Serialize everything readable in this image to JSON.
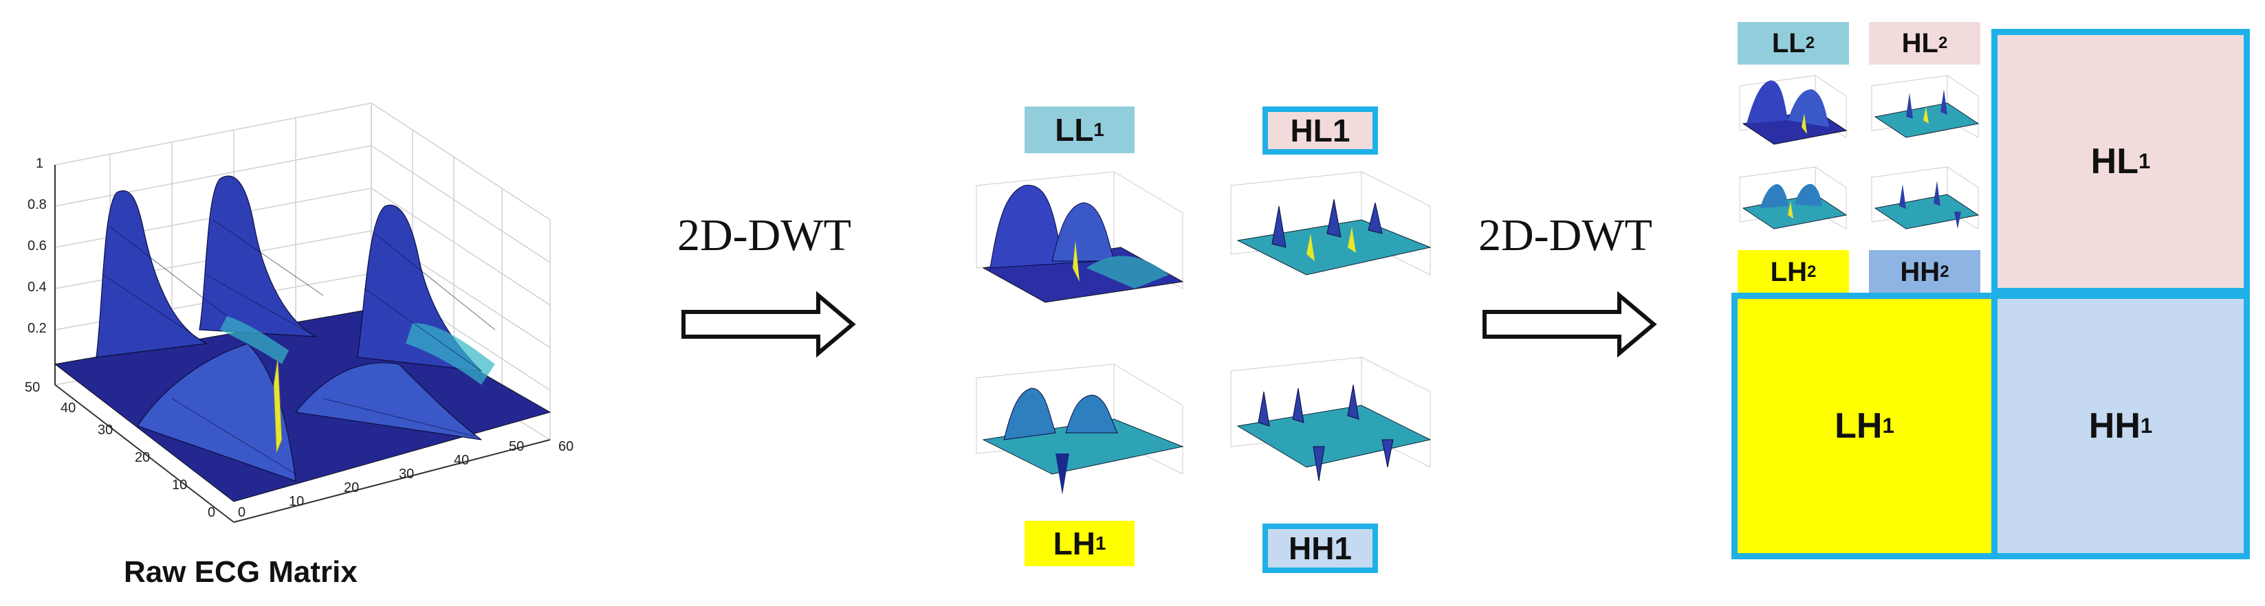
{
  "raw_plot": {
    "title": "Raw ECG Matrix",
    "z_ticks": [
      "0.2",
      "0.4",
      "0.6",
      "0.8",
      "1"
    ],
    "left_ticks": [
      "0",
      "10",
      "20",
      "30",
      "40",
      "50"
    ],
    "right_ticks": [
      "0",
      "10",
      "20",
      "30",
      "40",
      "50",
      "60"
    ]
  },
  "arrows": [
    {
      "label": "2D-DWT"
    },
    {
      "label": "2D-DWT"
    }
  ],
  "level1": {
    "ll": {
      "name": "LL",
      "sub": "1",
      "color": "#92CDDC"
    },
    "hl": {
      "name": "HL1",
      "color": "#F2DCDB"
    },
    "lh": {
      "name": "LH",
      "sub": "1",
      "color": "#FFFF00"
    },
    "hh": {
      "name": "HH1",
      "color": "#C5D9F1"
    }
  },
  "level2": {
    "ll": {
      "name": "LL",
      "sub": "2",
      "color": "#92CDDC"
    },
    "hl": {
      "name": "HL",
      "sub": "2",
      "color": "#F2DCDB"
    },
    "lh": {
      "name": "LH",
      "sub": "2",
      "color": "#FFFF00"
    },
    "hh": {
      "name": "HH",
      "sub": "2",
      "color": "#8DB4E2"
    }
  },
  "quadrants": {
    "hl": {
      "name": "HL",
      "sub": "1",
      "color": "#F2DCDB"
    },
    "lh": {
      "name": "LH",
      "sub": "1",
      "color": "#FFFF00"
    },
    "hh": {
      "name": "HH",
      "sub": "1",
      "color": "#C5D9F1"
    }
  },
  "colors": {
    "border_blue": "#1FB0E8",
    "surface_dark": "#2B2FA0",
    "surface_mid": "#3A58C8",
    "surface_teal": "#2FA3B6"
  }
}
